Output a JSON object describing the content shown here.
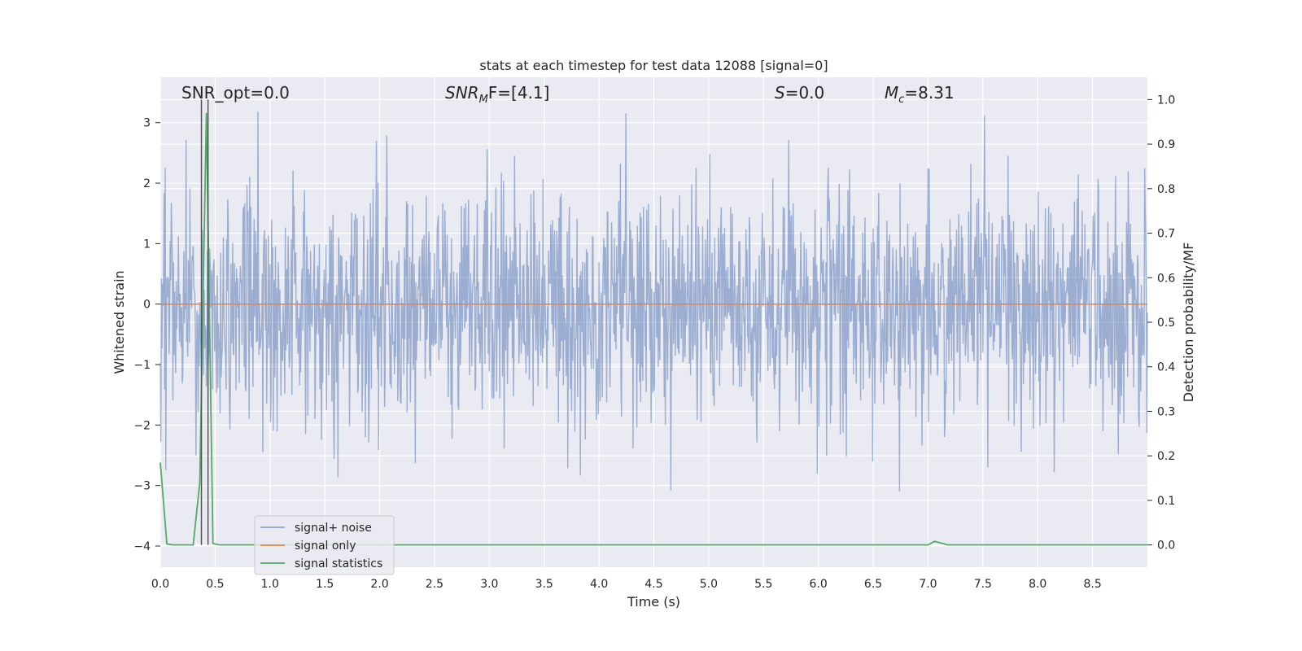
{
  "chart_data": {
    "type": "line",
    "title": "stats at each timestep for test data 12088 [signal=0]",
    "xlabel": "Time (s)",
    "ylabel": "Whitened strain",
    "y2label": "Detection probability/MF",
    "xlim": [
      0.0,
      9.0
    ],
    "ylim": [
      -4.35,
      3.75
    ],
    "y2lim": [
      -0.05,
      1.05
    ],
    "x_ticks": [
      0.0,
      0.5,
      1.0,
      1.5,
      2.0,
      2.5,
      3.0,
      3.5,
      4.0,
      4.5,
      5.0,
      5.5,
      6.0,
      6.5,
      7.0,
      7.5,
      8.0,
      8.5
    ],
    "x_tick_labels": [
      "0.0",
      "0.5",
      "1.0",
      "1.5",
      "2.0",
      "2.5",
      "3.0",
      "3.5",
      "4.0",
      "4.5",
      "5.0",
      "5.5",
      "6.0",
      "6.5",
      "7.0",
      "7.5",
      "8.0",
      "8.5"
    ],
    "y_ticks": [
      -4,
      -3,
      -2,
      -1,
      0,
      1,
      2,
      3
    ],
    "y_tick_labels": [
      "−4",
      "−3",
      "−2",
      "−1",
      "0",
      "1",
      "2",
      "3"
    ],
    "y2_ticks": [
      0.0,
      0.1,
      0.2,
      0.3,
      0.4,
      0.5,
      0.6,
      0.7,
      0.8,
      0.9,
      1.0
    ],
    "y2_tick_labels": [
      "0.0",
      "0.1",
      "0.2",
      "0.3",
      "0.4",
      "0.5",
      "0.6",
      "0.7",
      "0.8",
      "0.9",
      "1.0"
    ],
    "grid": true,
    "legend_placement": "lower-left",
    "annotations": {
      "snr_opt": "SNR_opt=0.0",
      "snr_mf_main": "SNR",
      "snr_mf_sub": "M",
      "snr_mf_rest": "F=[4.1]",
      "s_var": "S",
      "s_rest": "=0.0",
      "mc_var": "M",
      "mc_sub": "c",
      "mc_rest": "=8.31"
    },
    "vertical_lines_x": [
      0.375,
      0.435
    ],
    "series": [
      {
        "name": "signal+ noise",
        "color": "#4c72b0",
        "amplitude_range": [
          -4.0,
          3.4
        ],
        "x_range": [
          0.0,
          9.0
        ],
        "sample_count": 1800
      },
      {
        "name": "signal only",
        "color": "#dd8452",
        "x": [
          0.0,
          9.0
        ],
        "y": [
          0.0,
          0.0
        ]
      },
      {
        "name": "signal statistics",
        "color": "#55a868",
        "x": [
          0.0,
          0.06,
          0.12,
          0.3,
          0.36,
          0.42,
          0.48,
          0.54,
          0.6,
          7.0,
          7.06,
          7.18,
          9.0
        ],
        "y": [
          0.185,
          0.002,
          0.0,
          0.0,
          0.14,
          0.97,
          0.003,
          0.0,
          0.0,
          0.0,
          0.008,
          0.0,
          0.0
        ]
      }
    ]
  }
}
